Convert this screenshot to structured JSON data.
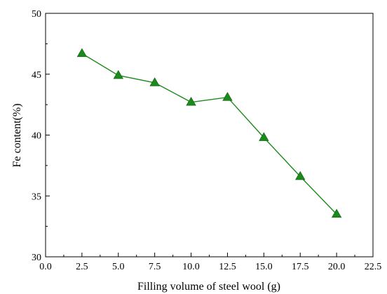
{
  "chart_data": {
    "type": "line",
    "xlabel": "Filling volume of steel wool (g)",
    "ylabel": "Fe content(%)",
    "xlim": [
      0,
      22.5
    ],
    "ylim": [
      30,
      50
    ],
    "x_ticks": [
      "0.0",
      "2.5",
      "5.0",
      "7.5",
      "10.0",
      "12.5",
      "15.0",
      "17.5",
      "20.0",
      "22.5"
    ],
    "y_ticks": [
      "30",
      "35",
      "40",
      "45",
      "50"
    ],
    "grid": false,
    "series": [
      {
        "marker": "triangle",
        "color": "#1a8a1a",
        "x": [
          2.5,
          5.0,
          7.5,
          10.0,
          12.5,
          15.0,
          17.5,
          20.0
        ],
        "y": [
          46.7,
          44.9,
          44.3,
          42.7,
          43.1,
          39.8,
          36.6,
          33.5
        ]
      }
    ]
  }
}
